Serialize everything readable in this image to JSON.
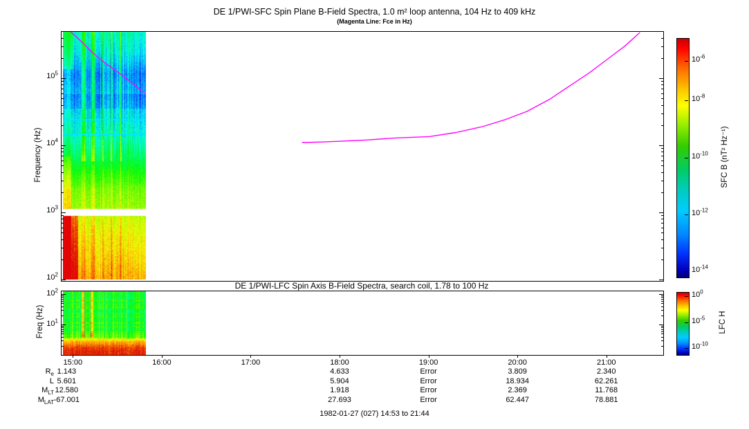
{
  "figure": {
    "footer": "1982-01-27 (027) 14:53 to 21:44"
  },
  "colors": {
    "magenta_line": "#ff00ff",
    "axis": "#000000",
    "background": "#ffffff"
  },
  "chart_data": [
    {
      "type": "heatmap",
      "name": "SFC spectrogram",
      "title": "DE 1/PWI-SFC  Spin Plane B-Field Spectra, 1.0 m² loop antenna, 104 Hz to 409 kHz",
      "subtitle": "(Magenta Line: Fce in Hz)",
      "ylabel": "Frequency (Hz)",
      "yscale": "log",
      "ylim_hz": [
        100,
        490000
      ],
      "yticks": [
        {
          "base": "10",
          "exp": "5",
          "hz": 100000
        },
        {
          "base": "10",
          "exp": "4",
          "hz": 10000
        },
        {
          "base": "10",
          "exp": "3",
          "hz": 1000
        },
        {
          "base": "10",
          "exp": "2",
          "hz": 100
        }
      ],
      "x_hours_range": [
        14.87,
        21.63
      ],
      "data_coverage_hours": [
        14.883,
        15.817
      ],
      "colorbar": {
        "label": "SFC B (nT² Hz⁻¹)",
        "ticks": [
          {
            "base": "10",
            "exp": "-6",
            "frac": 0.095
          },
          {
            "base": "10",
            "exp": "-8",
            "frac": 0.262
          },
          {
            "base": "10",
            "exp": "-10",
            "frac": 0.5
          },
          {
            "base": "10",
            "exp": "-12",
            "frac": 0.738
          },
          {
            "base": "10",
            "exp": "-14",
            "frac": 0.977
          }
        ]
      },
      "fce_line": {
        "color": "#ff00ff",
        "label": "Fce in Hz",
        "segments": [
          [
            [
              14.97,
              490000
            ],
            [
              15.08,
              360000
            ],
            [
              15.2,
              250000
            ],
            [
              15.35,
              170000
            ],
            [
              15.55,
              110000
            ],
            [
              15.8,
              60000
            ]
          ],
          [
            [
              17.57,
              11000
            ],
            [
              17.8,
              11200
            ],
            [
              18.0,
              11500
            ],
            [
              18.3,
              12000
            ],
            [
              18.6,
              12800
            ],
            [
              19.0,
              13500
            ],
            [
              19.3,
              15500
            ],
            [
              19.6,
              19000
            ],
            [
              19.85,
              24000
            ],
            [
              20.1,
              32000
            ],
            [
              20.35,
              48000
            ],
            [
              20.6,
              80000
            ],
            [
              20.8,
              120000
            ],
            [
              21.0,
              190000
            ],
            [
              21.2,
              300000
            ],
            [
              21.37,
              480000
            ]
          ]
        ]
      },
      "intensity_profile": [
        [
          0,
          0.3
        ],
        [
          0.08,
          0.24
        ],
        [
          0.17,
          0.12
        ],
        [
          0.24,
          0.16
        ],
        [
          0.32,
          0.21
        ],
        [
          0.4,
          0.27
        ],
        [
          0.46,
          0.34
        ],
        [
          0.52,
          0.43
        ],
        [
          0.58,
          0.53
        ],
        [
          0.64,
          0.61
        ],
        [
          0.7,
          0.64
        ],
        [
          0.76,
          0.7
        ],
        [
          0.83,
          0.74
        ],
        [
          0.9,
          0.77
        ],
        [
          1.0,
          0.82
        ]
      ],
      "white_gap_yfrac": [
        0.715,
        0.742
      ],
      "cyan_lines_yfrac": [
        0.352,
        0.41
      ],
      "spike_columns": [
        27,
        28,
        29,
        30,
        31,
        32,
        41,
        42,
        43,
        44,
        45,
        57,
        58,
        69,
        70,
        83,
        84
      ]
    },
    {
      "type": "heatmap",
      "name": "LFC spectrogram",
      "title": "DE 1/PWI-LFC  Spin Axis B-Field Spectra, search coil, 1.78 to 100 Hz",
      "ylabel": "Freq (Hz)",
      "yscale": "log",
      "ylim_hz": [
        1,
        100
      ],
      "yticks": [
        {
          "base": "10",
          "exp": "2",
          "hz": 100
        },
        {
          "base": "10",
          "exp": "1",
          "hz": 10
        }
      ],
      "colorbar": {
        "label": "LFC H",
        "ticks": [
          {
            "base": "10",
            "exp": "0",
            "frac": 0.07
          },
          {
            "base": "10",
            "exp": "-5",
            "frac": 0.49
          },
          {
            "base": "10",
            "exp": "-10",
            "frac": 0.9
          }
        ]
      },
      "intensity_profile": [
        [
          0,
          0.5
        ],
        [
          0.3,
          0.48
        ],
        [
          0.55,
          0.52
        ],
        [
          0.7,
          0.58
        ],
        [
          0.78,
          0.82
        ],
        [
          0.88,
          0.93
        ],
        [
          0.95,
          0.97
        ],
        [
          1,
          0.95
        ]
      ],
      "spike_columns": [
        27,
        28,
        29,
        30,
        40,
        41,
        42,
        43
      ]
    }
  ],
  "xaxis": {
    "ticks": [
      {
        "label": "15:00",
        "t": 15
      },
      {
        "label": "16:00",
        "t": 16
      },
      {
        "label": "17:00",
        "t": 17
      },
      {
        "label": "18:00",
        "t": 18
      },
      {
        "label": "19:00",
        "t": 19
      },
      {
        "label": "20:00",
        "t": 20
      },
      {
        "label": "21:00",
        "t": 21
      }
    ]
  },
  "ephemeris": {
    "column_times": [
      14.93,
      18.0,
      19.0,
      20.0,
      21.0
    ],
    "rows": [
      {
        "label": "R",
        "sub": "e",
        "values": [
          "1.143",
          "4.633",
          "Error",
          "3.809",
          "2.340"
        ]
      },
      {
        "label": "L",
        "sub": "",
        "values": [
          "5.601",
          "5.904",
          "Error",
          "18.934",
          "62.261"
        ]
      },
      {
        "label": "M",
        "sub": "LT",
        "values": [
          "12.580",
          "1.918",
          "Error",
          "2.369",
          "11.768"
        ]
      },
      {
        "label": "M",
        "sub": "LAT",
        "values": [
          "-67.001",
          "27.693",
          "Error",
          "62.447",
          "78.881"
        ]
      }
    ]
  }
}
